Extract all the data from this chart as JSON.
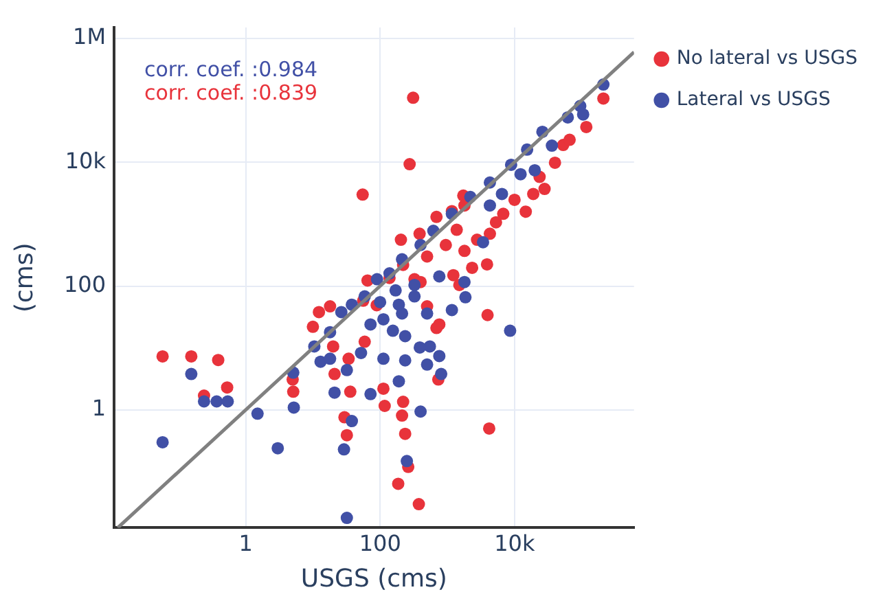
{
  "chart_data": {
    "type": "scatter",
    "xlabel": "USGS (cms)",
    "ylabel": "(cms)",
    "xlim": [
      0.011,
      600000
    ],
    "ylim": [
      0.0125,
      1500000
    ],
    "xticks": [
      1,
      100,
      {
        "value": 10000,
        "label": "10k"
      }
    ],
    "yticks": [
      1,
      100,
      {
        "value": 10000,
        "label": "10k"
      },
      {
        "value": 1000000,
        "label": "1M"
      }
    ],
    "log": "xy",
    "grid": true,
    "legend": "top right",
    "marker": "circle",
    "annotations": [
      "corr. coef. :0.984",
      "corr. coef. :0.839"
    ],
    "series": [
      {
        "name": "No lateral vs USGS",
        "color": "#e8333b",
        "x": [
          310,
          275,
          55,
          0.058,
          0.155,
          0.39,
          0.53,
          0.24,
          5,
          5.1,
          10,
          12.3,
          18,
          20,
          21,
          29.5,
          32,
          36,
          112,
          117,
          220,
          212,
          236,
          262,
          186,
          377,
          735,
          4200,
          3970,
          3900,
          14700,
          28000,
          210000,
          117000,
          53000,
          65,
          56,
          204,
          387,
          690,
          1730,
          1380,
          1510,
          2340,
          1230,
          760,
          500,
          400,
          220,
          138,
          89,
          34,
          59,
          690,
          6800,
          5300,
          4300,
          19000,
          40000,
          66000,
          23600,
          10000,
          2770,
          950,
          500,
          325,
          1800,
          1170,
          1800
        ],
        "values": [
          110000,
          9300,
          3000,
          7.3,
          7.3,
          6.4,
          2.3,
          1.7,
          3.1,
          1.97,
          22,
          38,
          47,
          10.6,
          3.8,
          0.76,
          0.39,
          1.97,
          2.2,
          1.16,
          1.35,
          0.81,
          0.41,
          0.12,
          0.064,
          0.03,
          3.1,
          0.5,
          34,
          224,
          1590,
          3700,
          107000,
          37000,
          19000,
          123,
          58,
          560,
          700,
          1310,
          2890,
          810,
          104,
          197,
          150,
          24,
          47,
          116,
          220,
          135,
          49,
          6.7,
          12.6,
          21,
          1470,
          1070,
          700,
          3070,
          9800,
          23000,
          5800,
          2470,
          560,
          460,
          300,
          129,
          370,
          1620,
          2000
        ]
      },
      {
        "name": "Lateral vs USGS",
        "color": "#4150a6",
        "x": [
          210000,
          95000,
          62000,
          26000,
          15400,
          8900,
          20000,
          4300,
          2200,
          1170,
          620,
          400,
          212,
          138,
          90,
          59,
          38,
          26.5,
          18,
          10.5,
          5.1,
          5.2,
          1.5,
          3,
          0.058,
          0.155,
          0.24,
          0.37,
          0.54,
          21,
          38,
          29,
          32,
          250,
          400,
          72,
          32,
          52,
          112,
          236,
          190,
          500,
          810,
          760,
          550,
          390,
          236,
          155,
          112,
          190,
          325,
          500,
          1170,
          1860,
          8600,
          1800,
          760,
          325,
          170,
          100,
          212,
          72,
          13,
          18,
          3400,
          4300,
          6500,
          12300,
          36000,
          105000
        ],
        "values": [
          180000,
          81000,
          53000,
          31000,
          16000,
          9100,
          7400,
          4700,
          2750,
          1470,
          780,
          460,
          270,
          160,
          129,
          68,
          50,
          38,
          18,
          10.6,
          4,
          1.09,
          0.87,
          0.24,
          0.3,
          3.8,
          1.37,
          1.37,
          1.37,
          1.9,
          0.66,
          0.23,
          0.018,
          0.149,
          0.94,
          1.8,
          4.4,
          8.3,
          6.7,
          6.3,
          2.9,
          5.4,
          3.8,
          7.4,
          10.6,
          10.2,
          15.5,
          19,
          29,
          50,
          68,
          36,
          41,
          66,
          19,
          116,
          143,
          104,
          85,
          55,
          36,
          24,
          6,
          6.7,
          510,
          2000,
          3070,
          6400,
          18500,
          59000
        ]
      },
      {
        "type": "line",
        "marker": "none",
        "color": "#808080",
        "x": [
          0.0125,
          600000
        ],
        "values": [
          0.0125,
          600000
        ]
      }
    ]
  }
}
